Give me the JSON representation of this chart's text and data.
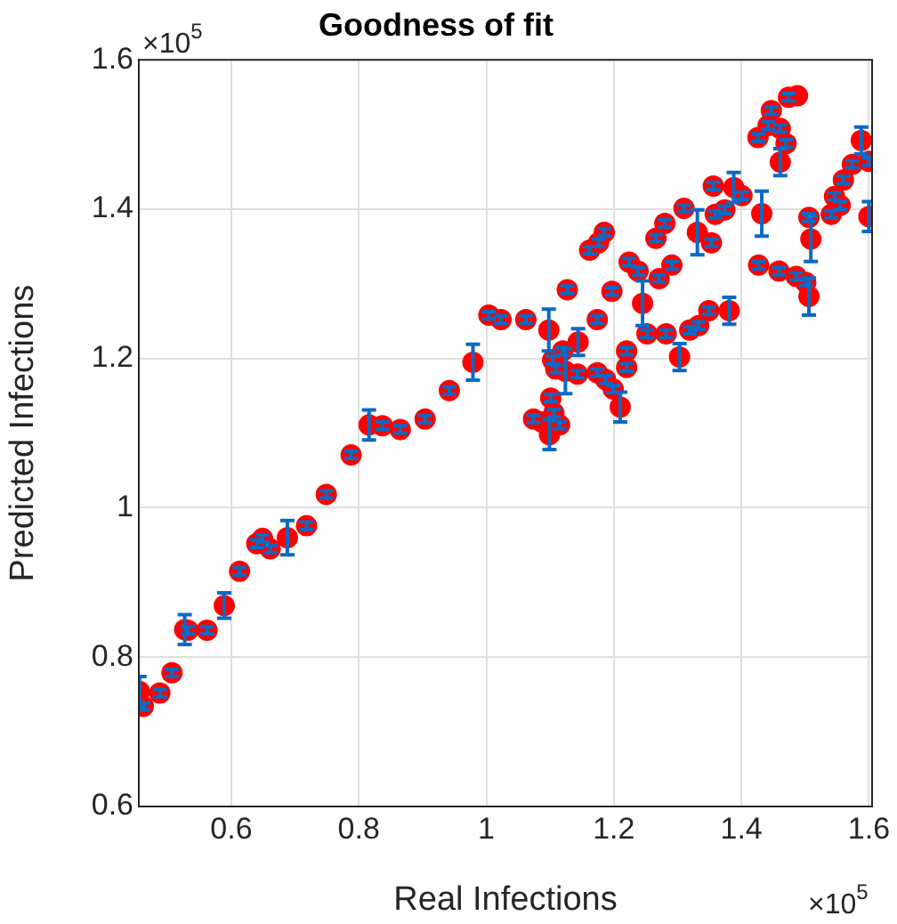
{
  "chart_data": {
    "type": "scatter",
    "title": "Goodness of fit",
    "xlabel": "Real Infections",
    "ylabel": "Predicted Infections",
    "annotations": [
      "×10$^{5}$",
      "×10$^{5}$"
    ],
    "xlim": [
      0.455,
      1.605
    ],
    "xticks": [
      0.6,
      0.8,
      1,
      1.2,
      1.4,
      1.6
    ],
    "ylim": [
      0.6,
      1.6
    ],
    "yticks": [
      0.6,
      0.8,
      1,
      1.2,
      1.4,
      1.6
    ],
    "grid": true,
    "marker": "circle",
    "legend": false,
    "series": [
      {
        "color": "#ff0000",
        "x": [
          0.456,
          0.462,
          0.488,
          0.507,
          0.527,
          0.532,
          0.562,
          0.589,
          0.613,
          0.64,
          0.649,
          0.661,
          0.688,
          0.718,
          0.749,
          0.788,
          0.816,
          0.837,
          0.865,
          0.904,
          0.942,
          0.979,
          1.004,
          1.023,
          1.062,
          1.074,
          1.087,
          1.098,
          1.099,
          1.101,
          1.104,
          1.106,
          1.109,
          1.115,
          1.12,
          1.124,
          1.127,
          1.143,
          1.144,
          1.162,
          1.174,
          1.174,
          1.176,
          1.185,
          1.187,
          1.197,
          1.199,
          1.21,
          1.22,
          1.22,
          1.224,
          1.238,
          1.245,
          1.252,
          1.266,
          1.271,
          1.28,
          1.282,
          1.291,
          1.303,
          1.31,
          1.319,
          1.331,
          1.333,
          1.349,
          1.353,
          1.356,
          1.359,
          1.374,
          1.381,
          1.388,
          1.401,
          1.426,
          1.427,
          1.432,
          1.442,
          1.447,
          1.459,
          1.461,
          1.461,
          1.47,
          1.474,
          1.486,
          1.488,
          1.501,
          1.506,
          1.506,
          1.509,
          1.541,
          1.546,
          1.555,
          1.56,
          1.574,
          1.588,
          1.6,
          1.6
        ],
        "values": [
          0.754,
          0.734,
          0.752,
          0.779,
          0.837,
          0.836,
          0.836,
          0.869,
          0.915,
          0.952,
          0.959,
          0.945,
          0.96,
          0.976,
          1.018,
          1.071,
          1.111,
          1.11,
          1.105,
          1.119,
          1.157,
          1.195,
          1.258,
          1.252,
          1.252,
          1.119,
          1.115,
          1.238,
          1.098,
          1.147,
          1.198,
          1.127,
          1.186,
          1.111,
          1.21,
          1.183,
          1.292,
          1.179,
          1.222,
          1.345,
          1.252,
          1.181,
          1.355,
          1.369,
          1.172,
          1.29,
          1.159,
          1.135,
          1.21,
          1.188,
          1.329,
          1.317,
          1.274,
          1.233,
          1.361,
          1.307,
          1.381,
          1.233,
          1.325,
          1.202,
          1.401,
          1.238,
          1.369,
          1.244,
          1.264,
          1.355,
          1.431,
          1.393,
          1.399,
          1.264,
          1.429,
          1.418,
          1.496,
          1.325,
          1.394,
          1.512,
          1.532,
          1.317,
          1.508,
          1.463,
          1.488,
          1.55,
          1.31,
          1.552,
          1.302,
          1.283,
          1.389,
          1.36,
          1.393,
          1.417,
          1.405,
          1.439,
          1.46,
          1.492,
          1.464,
          1.39
        ],
        "errors": [
          0.02,
          0.005,
          0.005,
          0.005,
          0.02,
          0.005,
          0.005,
          0.017,
          0.005,
          0.005,
          0.005,
          0.005,
          0.023,
          0.005,
          0.005,
          0.005,
          0.02,
          0.005,
          0.005,
          0.005,
          0.005,
          0.024,
          0.005,
          0.005,
          0.005,
          0.005,
          null,
          0.028,
          0.02,
          0.005,
          0.005,
          0.005,
          0.005,
          0.005,
          0.005,
          0.03,
          0.005,
          0.005,
          0.018,
          0.005,
          0.005,
          0.005,
          0.005,
          0.005,
          0.005,
          0.005,
          0.005,
          0.02,
          0.005,
          0.005,
          0.005,
          0.005,
          0.03,
          0.005,
          0.005,
          0.005,
          0.005,
          0.005,
          0.005,
          0.018,
          0.005,
          0.005,
          0.03,
          0.005,
          0.005,
          0.005,
          0.005,
          0.005,
          0.005,
          0.018,
          0.02,
          0.005,
          0.005,
          0.005,
          0.03,
          0.005,
          0.005,
          0.005,
          0.005,
          0.018,
          0.005,
          0.005,
          0.005,
          null,
          0.005,
          0.025,
          0.005,
          0.03,
          0.005,
          0.005,
          0.005,
          0.005,
          0.005,
          0.018,
          0.005,
          0.02
        ]
      }
    ]
  }
}
